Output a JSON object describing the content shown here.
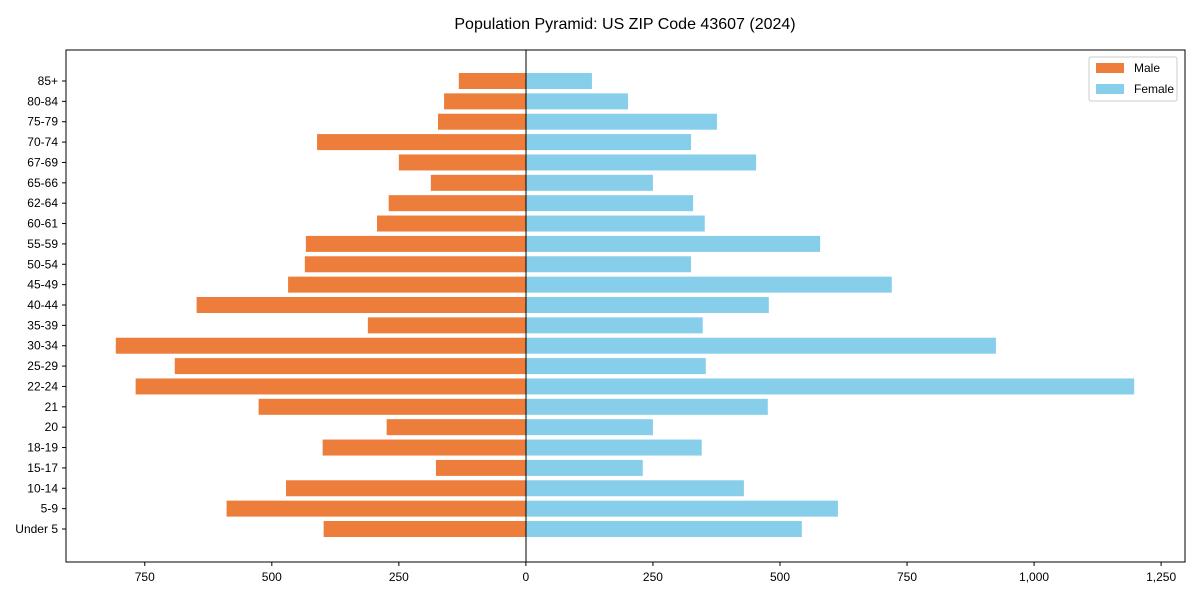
{
  "chart_data": {
    "type": "bar",
    "orientation": "horizontal",
    "title": "Population Pyramid: US ZIP Code 43607 (2024)",
    "xlabel": "",
    "ylabel": "",
    "xlim": [
      -905,
      1297
    ],
    "xticks": [
      -750,
      -500,
      -250,
      0,
      250,
      500,
      750,
      1000,
      1250
    ],
    "xtick_labels": [
      "750",
      "500",
      "250",
      "0",
      "250",
      "500",
      "750",
      "1,000",
      "1,250"
    ],
    "categories": [
      "Under 5",
      "5-9",
      "10-14",
      "15-17",
      "18-19",
      "20",
      "21",
      "22-24",
      "25-29",
      "30-34",
      "35-39",
      "40-44",
      "45-49",
      "50-54",
      "55-59",
      "60-61",
      "62-64",
      "65-66",
      "67-69",
      "70-74",
      "75-79",
      "80-84",
      "85+"
    ],
    "series": [
      {
        "name": "Male",
        "color": "#ED7D3A",
        "values": [
          398,
          589,
          472,
          177,
          400,
          274,
          526,
          768,
          691,
          807,
          311,
          648,
          468,
          435,
          433,
          293,
          270,
          187,
          250,
          411,
          173,
          161,
          132
        ]
      },
      {
        "name": "Female",
        "color": "#87CEEB",
        "values": [
          543,
          614,
          429,
          230,
          346,
          250,
          476,
          1197,
          354,
          925,
          348,
          478,
          720,
          325,
          579,
          352,
          329,
          250,
          453,
          325,
          376,
          201,
          130
        ]
      }
    ],
    "legend": {
      "placement": "top-right",
      "entries": [
        "Male",
        "Female"
      ]
    },
    "grid": false
  }
}
